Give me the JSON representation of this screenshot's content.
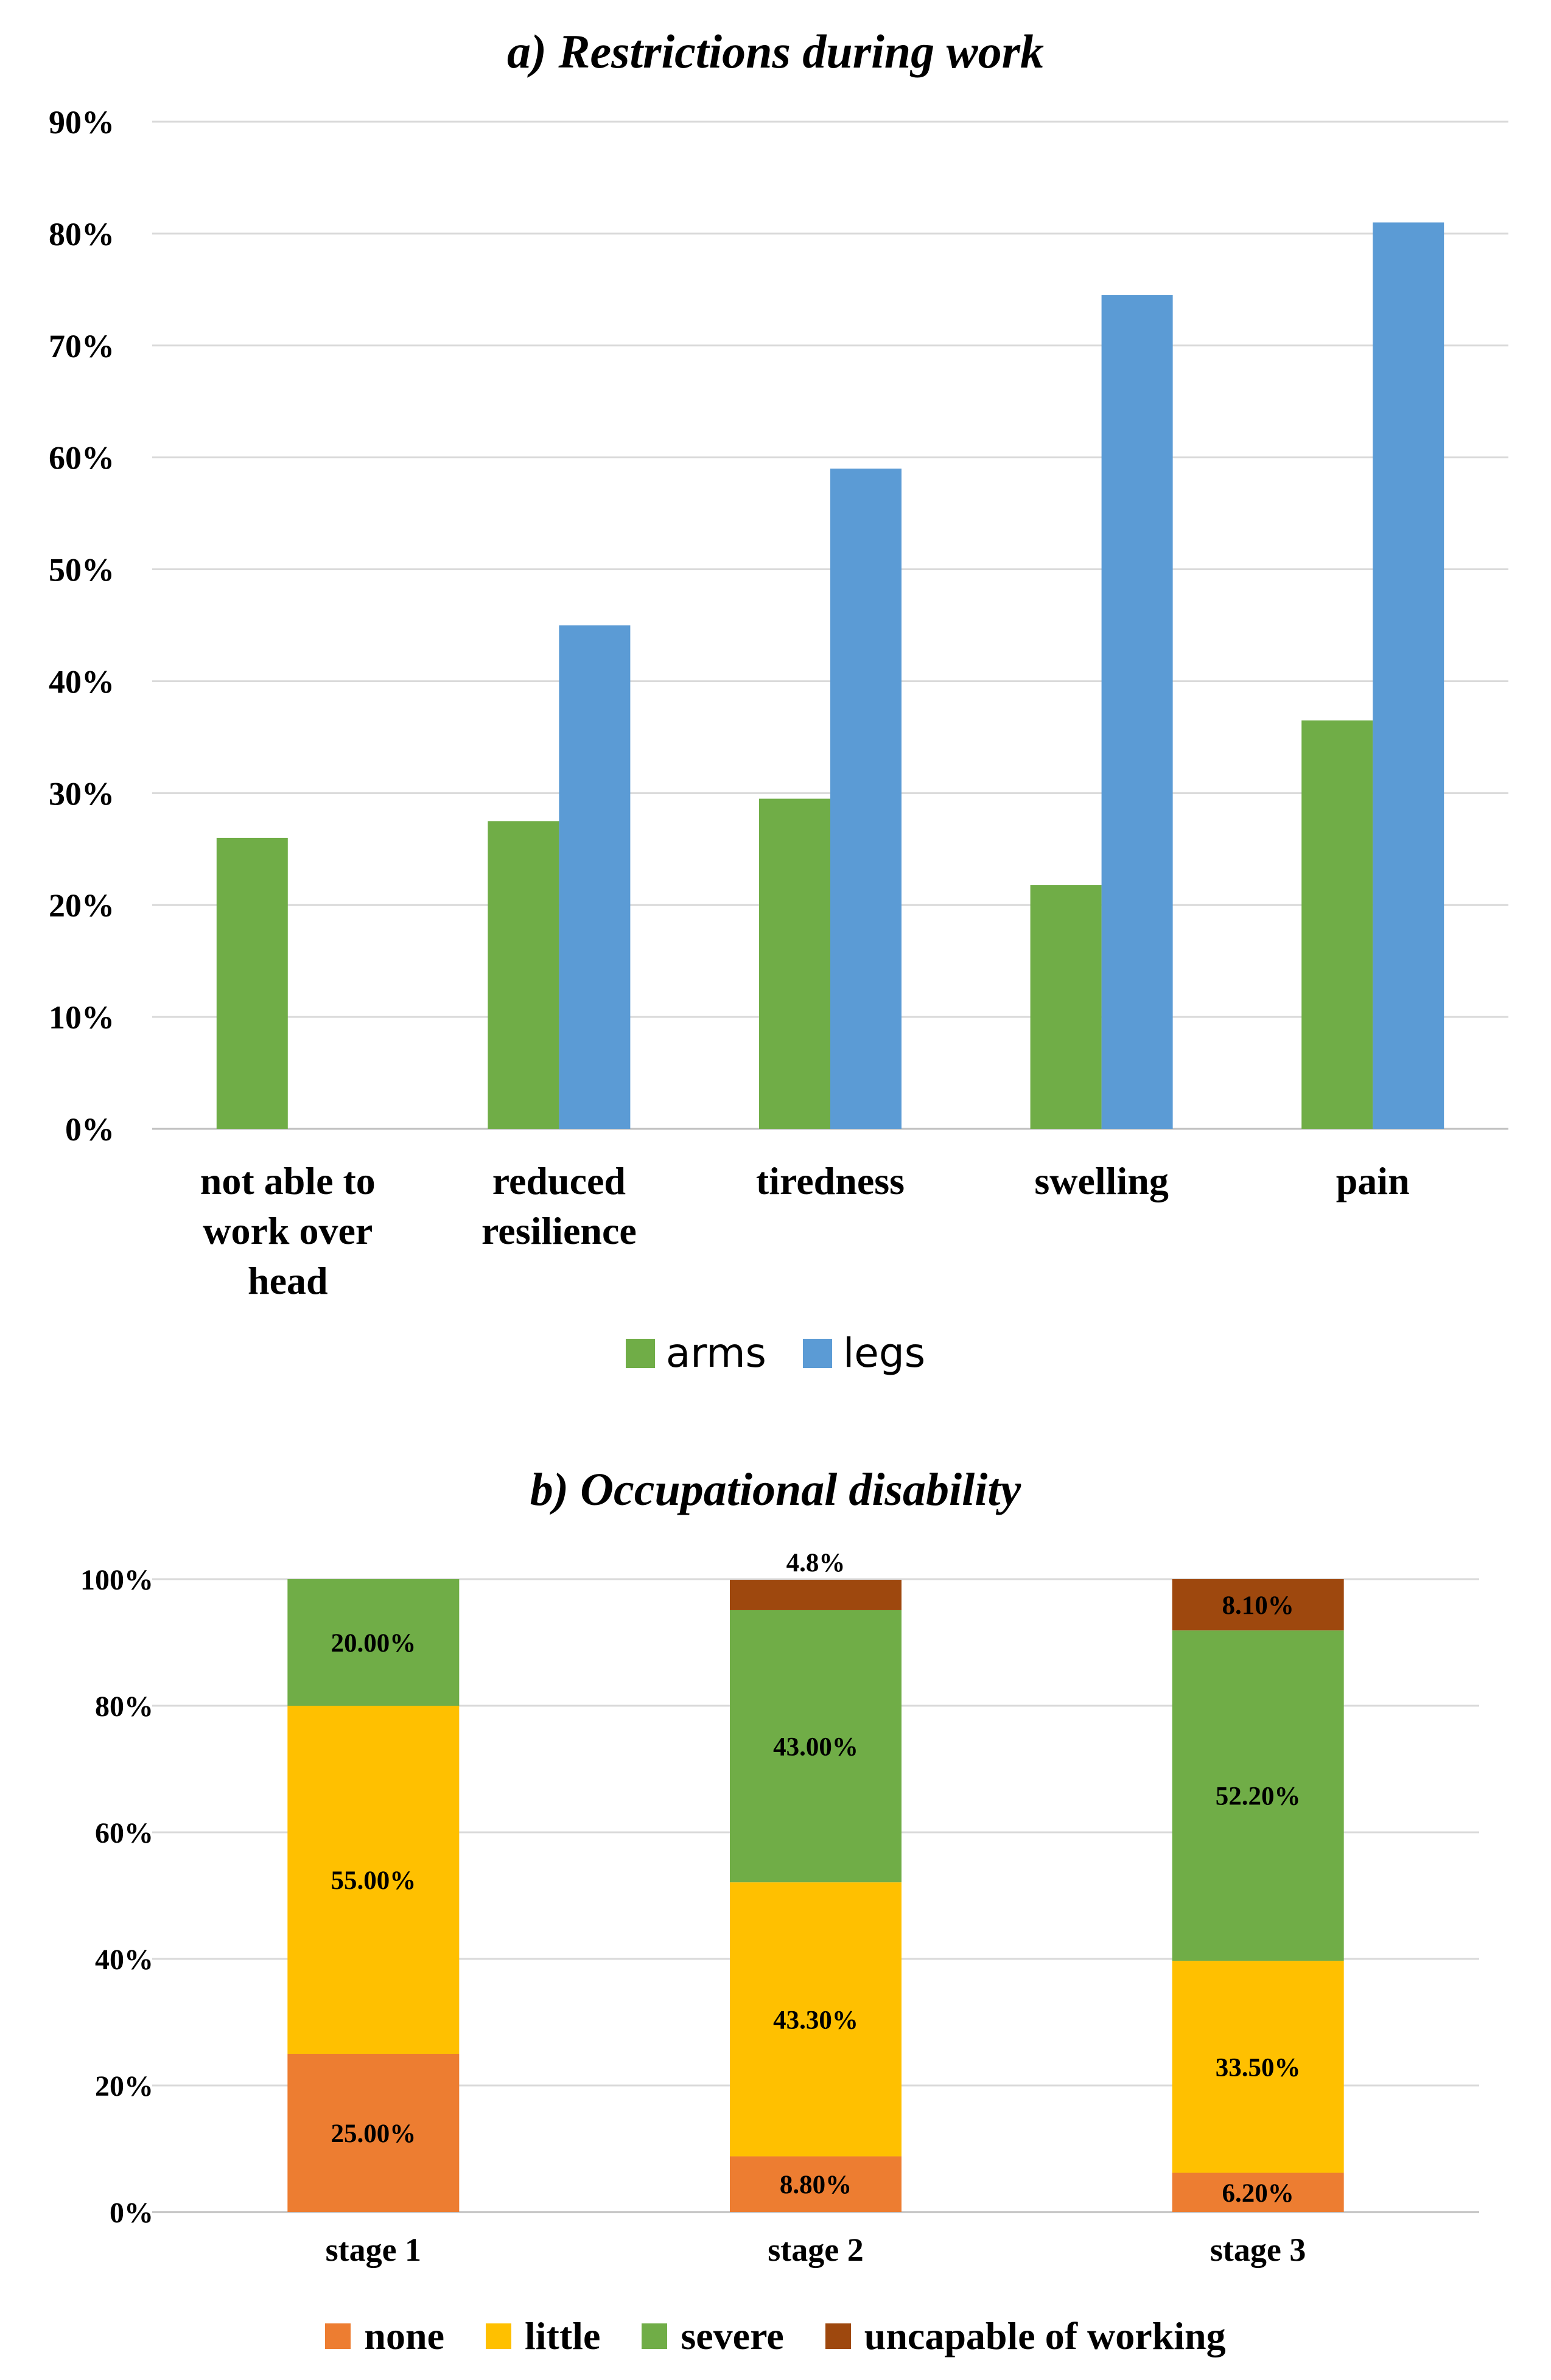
{
  "chart_data": [
    {
      "type": "bar",
      "title": "a) Restrictions during work",
      "categories": [
        [
          "not able to",
          "work over",
          "head"
        ],
        [
          "reduced",
          "resilience"
        ],
        [
          "tiredness"
        ],
        [
          "swelling"
        ],
        [
          "pain"
        ]
      ],
      "series": [
        {
          "name": "arms",
          "color": "#70ad47",
          "values": [
            26,
            27.5,
            29.5,
            21.8,
            36.5
          ]
        },
        {
          "name": "legs",
          "color": "#5b9bd5",
          "values": [
            0,
            45,
            59,
            74.5,
            81
          ]
        }
      ],
      "yticks": [
        "0%",
        "10%",
        "20%",
        "30%",
        "40%",
        "50%",
        "60%",
        "70%",
        "80%",
        "90%"
      ],
      "ylim": [
        0,
        90
      ],
      "xlabel": "",
      "ylabel": "",
      "grid": true,
      "legend": "bottom-center"
    },
    {
      "type": "bar",
      "stacked": true,
      "title": "b) Occupational disability",
      "categories": [
        "stage 1",
        "stage 2",
        "stage 3"
      ],
      "series": [
        {
          "name": "none",
          "color": "#ed7d31",
          "values": [
            25.0,
            8.8,
            6.2
          ],
          "labels": [
            "25.00%",
            "8.80%",
            "6.20%"
          ]
        },
        {
          "name": "little",
          "color": "#ffc000",
          "values": [
            55.0,
            43.3,
            33.5
          ],
          "labels": [
            "55.00%",
            "43.30%",
            "33.50%"
          ]
        },
        {
          "name": "severe",
          "color": "#70ad47",
          "values": [
            20.0,
            43.0,
            52.2
          ],
          "labels": [
            "20.00%",
            "43.00%",
            "52.20%"
          ]
        },
        {
          "name": "uncapable of working",
          "color": "#9e480e",
          "values": [
            0,
            4.8,
            8.1
          ],
          "labels": [
            "",
            "4.8%",
            "8.10%"
          ]
        }
      ],
      "yticks": [
        "0%",
        "20%",
        "40%",
        "60%",
        "80%",
        "100%"
      ],
      "ylim": [
        0,
        100
      ],
      "xlabel": "",
      "ylabel": "",
      "grid": true,
      "legend": "bottom-center"
    }
  ]
}
